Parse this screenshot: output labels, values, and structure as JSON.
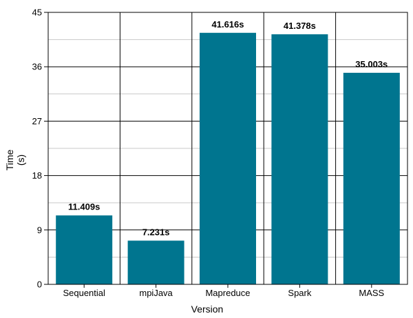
{
  "chart_data": {
    "type": "bar",
    "categories": [
      "Sequential",
      "mpiJava",
      "Mapreduce",
      "Spark",
      "MASS"
    ],
    "values": [
      11.409,
      7.231,
      41.616,
      41.378,
      35.003
    ],
    "value_labels": [
      "11.409s",
      "7.231s",
      "41.616s",
      "41.378s",
      "35.003s"
    ],
    "title": "",
    "xlabel": "Version",
    "ylabel_lines": [
      "Time",
      "(s)"
    ],
    "ylim": [
      0,
      45
    ],
    "yticks": [
      0,
      9,
      18,
      27,
      36,
      45
    ],
    "grid": true,
    "bar_color": "#00758f"
  }
}
